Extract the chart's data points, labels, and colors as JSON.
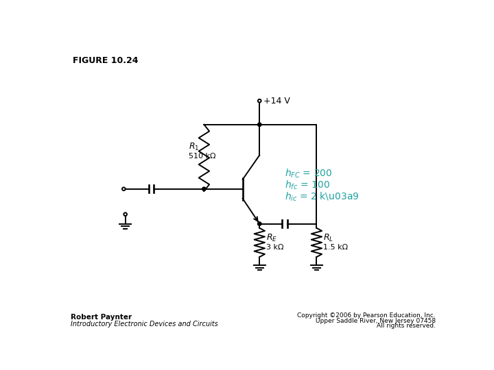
{
  "figure_label": "FIGURE 10.24",
  "circuit_color": "#000000",
  "param_color": "#20A0A0",
  "vcc_label": "+14 V",
  "bg_color": "#ffffff",
  "author": "Robert Paynter",
  "book": "Introductory Electronic Devices and Circuits",
  "copyright1": "Copyright ©2006 by Pearson Education, Inc.",
  "copyright2": "Upper Saddle River, New Jersey 07458",
  "copyright3": "All rights reserved."
}
